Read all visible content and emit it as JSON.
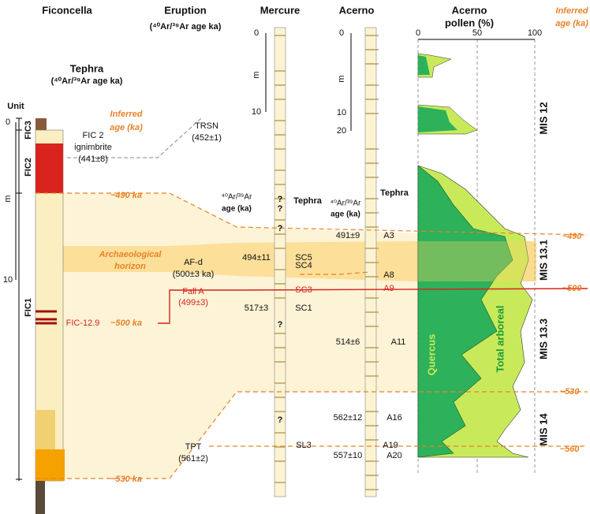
{
  "headers": {
    "ficoncella": "Ficoncella",
    "eruption": "Eruption",
    "eruption_sub": "(⁴⁰Ar/³⁹Ar age ka)",
    "mercure": "Mercure",
    "acerno": "Acerno",
    "pollen_1": "Acerno",
    "pollen_2": "pollen (%)",
    "inferred_1": "Inferred",
    "inferred_2": "age (ka)"
  },
  "ficoncella": {
    "tephra": "Tephra",
    "tephra_sub": "(⁴⁰Ar/³⁹Ar age ka)",
    "unit": "Unit",
    "scale": [
      "0",
      "m",
      "10"
    ],
    "units": [
      "FIC3",
      "FIC2",
      "FIC1"
    ],
    "inferred_1": "Inferred",
    "inferred_2": "age (ka)",
    "fic2_1": "FIC 2",
    "fic2_2": "ignimbrite",
    "fic2_3": "(441±8)",
    "age_490": "~490 ka",
    "archaeo_1": "Archaeological",
    "archaeo_2": "horizon",
    "fic129": "FIC-12.9",
    "age_500": "~500 ka",
    "age_530": "~530 ka"
  },
  "eruption": {
    "trsn": "TRSN",
    "trsn_age": "(452±1)",
    "afd": "AF-d",
    "afd_age": "(500±3 ka)",
    "falla": "Fall A",
    "falla_age": "(499±3)",
    "tpt": "TPT",
    "tpt_age": "(561±2)"
  },
  "mercure": {
    "scale": [
      "0",
      "m",
      "10"
    ],
    "age_1": "⁴⁰Ar/³⁹Ar",
    "age_2": "age (ka)",
    "tephra": "Tephra",
    "question_marks": [
      "?",
      "?",
      "?",
      "?",
      "?"
    ],
    "ages": [
      "494±11",
      "517±3"
    ],
    "layers": [
      "SC5",
      "SC4",
      "SC3",
      "SC1",
      "SL3"
    ]
  },
  "acerno": {
    "scale": [
      "0",
      "m",
      "10",
      "20"
    ],
    "age_1": "⁴⁰Ar/³⁹Ar",
    "age_2": "age (ka)",
    "tephra": "Tephra",
    "ages": [
      "491±9",
      "514±6",
      "562±12",
      "557±10"
    ],
    "layers": [
      "A3",
      "A8",
      "A9",
      "A11",
      "A16",
      "A19",
      "A20"
    ]
  },
  "pollen": {
    "axis": [
      "0",
      "50",
      "100"
    ],
    "quercus": "Quercus",
    "total": "Total arboreal",
    "mis": [
      "MIS 12",
      "MIS 13.1",
      "MIS 13.3",
      "MIS 14"
    ]
  },
  "inferred": [
    "~490",
    "~500",
    "~530",
    "~560"
  ]
}
